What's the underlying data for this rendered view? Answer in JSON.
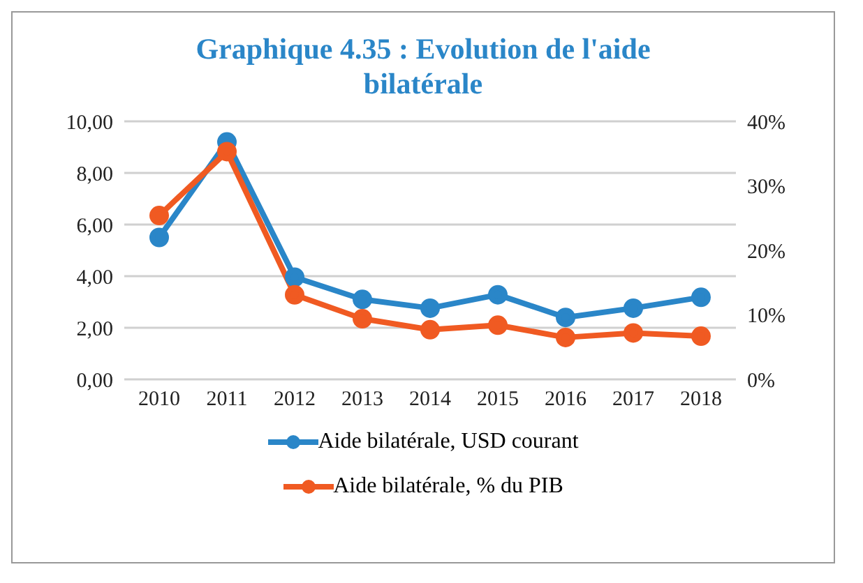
{
  "chart_data": {
    "type": "line",
    "title": "Graphique 4.35 : Evolution de l'aide bilatérale",
    "categories": [
      "2010",
      "2011",
      "2012",
      "2013",
      "2014",
      "2015",
      "2016",
      "2017",
      "2018"
    ],
    "series": [
      {
        "name": "Aide bilatérale, USD courant",
        "color": "#2a86c8",
        "values": [
          5.5,
          9.2,
          3.96,
          3.1,
          2.76,
          3.28,
          2.4,
          2.76,
          3.18
        ]
      },
      {
        "name": "Aide bilatérale, % du PIB",
        "color": "#f05a22",
        "axis": "y2",
        "values": [
          25.4,
          35.3,
          13.1,
          9.4,
          7.7,
          8.4,
          6.5,
          7.2,
          6.7
        ]
      }
    ],
    "ylim": [
      0,
      10
    ],
    "yticks": [
      {
        "value": 0,
        "label": "0,00"
      },
      {
        "value": 2,
        "label": "2,00"
      },
      {
        "value": 4,
        "label": "4,00"
      },
      {
        "value": 6,
        "label": "6,00"
      },
      {
        "value": 8,
        "label": "8,00"
      },
      {
        "value": 10,
        "label": "10,00"
      }
    ],
    "y2lim": [
      0,
      40
    ],
    "y2ticks": [
      {
        "value": 0,
        "label": "0%"
      },
      {
        "value": 10,
        "label": "10%"
      },
      {
        "value": 20,
        "label": "20%"
      },
      {
        "value": 30,
        "label": "30%"
      },
      {
        "value": 40,
        "label": "40%"
      }
    ],
    "grid": "y",
    "legend": "bottom",
    "marker": "circle",
    "line_style": "solid"
  }
}
